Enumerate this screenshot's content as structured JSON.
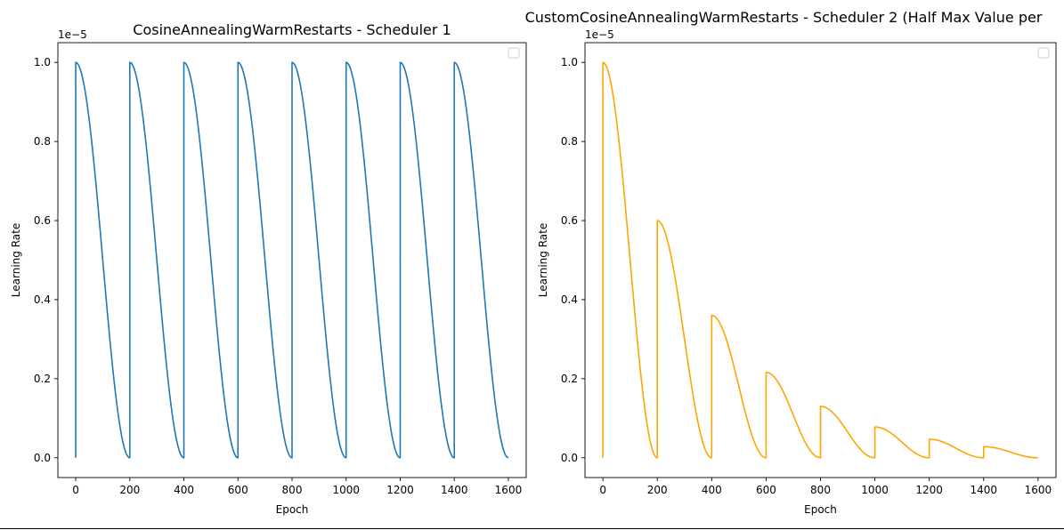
{
  "chart_data": [
    {
      "type": "line",
      "title": "CosineAnnealingWarmRestarts - Scheduler 1",
      "xlabel": "Epoch",
      "ylabel": "Learning Rate",
      "y_multiplier_label": "1e−5",
      "xlim": [
        -66,
        1666
      ],
      "ylim": [
        -0.05,
        1.05
      ],
      "y_unit_scale": 1e-05,
      "xticks": [
        0,
        200,
        400,
        600,
        800,
        1000,
        1200,
        1400,
        1600
      ],
      "yticks": [
        0.0,
        0.2,
        0.4,
        0.6,
        0.8,
        1.0
      ],
      "xtick_labels": [
        "0",
        "200",
        "400",
        "600",
        "800",
        "1000",
        "1200",
        "1400",
        "1600"
      ],
      "ytick_labels": [
        "0.0",
        "0.2",
        "0.4",
        "0.6",
        "0.8",
        "1.0"
      ],
      "legend": "top-right, empty",
      "grid": false,
      "color": "#1f77b4",
      "series": [
        {
          "restart_period": 200,
          "cycles": 8,
          "cycle_max_values": [
            1.0,
            1.0,
            1.0,
            1.0,
            1.0,
            1.0,
            1.0,
            1.0
          ],
          "min_value": 0.0,
          "x_range": [
            0,
            1600
          ]
        }
      ]
    },
    {
      "type": "line",
      "title": "CustomCosineAnnealingWarmRestarts - Scheduler 2 (Half Max Value per",
      "xlabel": "Epoch",
      "ylabel": "Learning Rate",
      "y_multiplier_label": "1e−5",
      "xlim": [
        -66,
        1666
      ],
      "ylim": [
        -0.05,
        1.05
      ],
      "y_unit_scale": 1e-05,
      "xticks": [
        0,
        200,
        400,
        600,
        800,
        1000,
        1200,
        1400,
        1600
      ],
      "yticks": [
        0.0,
        0.2,
        0.4,
        0.6,
        0.8,
        1.0
      ],
      "xtick_labels": [
        "0",
        "200",
        "400",
        "600",
        "800",
        "1000",
        "1200",
        "1400",
        "1600"
      ],
      "ytick_labels": [
        "0.0",
        "0.2",
        "0.4",
        "0.6",
        "0.8",
        "1.0"
      ],
      "legend": "top-right, empty",
      "grid": false,
      "color": "#ffa500",
      "series": [
        {
          "restart_period": 200,
          "cycles": 8,
          "cycle_max_values": [
            1.0,
            0.6,
            0.36,
            0.216,
            0.13,
            0.078,
            0.047,
            0.028
          ],
          "min_value": 0.0,
          "x_range": [
            0,
            1600
          ]
        }
      ]
    }
  ]
}
